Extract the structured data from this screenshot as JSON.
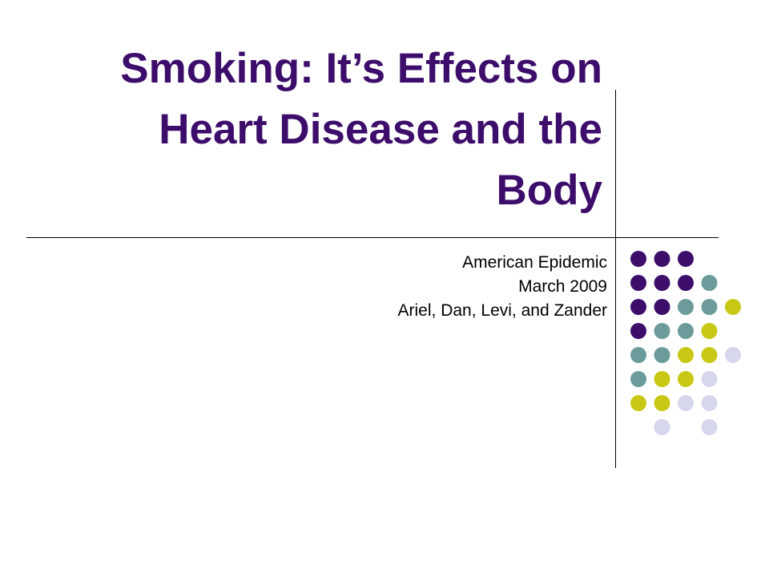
{
  "slide": {
    "title_lines": [
      "Smoking: It’s Effects on",
      "Heart Disease and the",
      "Body"
    ],
    "subtitle_lines": [
      "American Epidemic",
      "March 2009",
      "Ariel, Dan, Levi, and Zander"
    ]
  },
  "colors": {
    "title": "#3d0d6b",
    "dot_purple": "#3d0d6b",
    "dot_teal": "#6b9b9b",
    "dot_yellow": "#c8c814",
    "dot_lavender": "#d6d6ec"
  },
  "decoration": {
    "dot_grid": [
      [
        "purple",
        "purple",
        "purple",
        "",
        ""
      ],
      [
        "purple",
        "purple",
        "purple",
        "teal",
        ""
      ],
      [
        "purple",
        "purple",
        "teal",
        "teal",
        "yellow"
      ],
      [
        "purple",
        "teal",
        "teal",
        "yellow",
        ""
      ],
      [
        "teal",
        "teal",
        "yellow",
        "yellow",
        "lavender"
      ],
      [
        "teal",
        "yellow",
        "yellow",
        "lavender",
        ""
      ],
      [
        "yellow",
        "yellow",
        "lavender",
        "lavender",
        ""
      ],
      [
        "",
        "lavender",
        "",
        "lavender",
        ""
      ]
    ]
  }
}
